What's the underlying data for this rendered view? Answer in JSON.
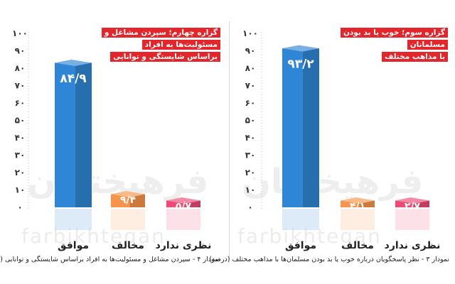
{
  "watermark": {
    "brand_fa": "فرهیختگان",
    "brand_en": "farbikhtegan"
  },
  "chart_data": [
    {
      "type": "bar",
      "panel": "left",
      "title": "گزاره چهارم؛ سپردن مشاغل و مسئولیت‌ها به افراد براساس شایستگی و توانایی",
      "title_lines": [
        "گزاره چهارم؛ سپردن مشاغل و مسئولیت‌ها به افراد",
        "براساس شایستگی و توانایی"
      ],
      "caption": "نمودار ۴ - سپردن مشاغل و مسئولیت‌ها به افراد براساس شایستگی و توانایی (درصد)",
      "categories": [
        "موافق",
        "مخالف",
        "نظری ندارد"
      ],
      "values": [
        84.9,
        9.4,
        5.7
      ],
      "data_labels": [
        "۸۴/۹",
        "۹/۴",
        "۵/۷"
      ],
      "colors": [
        "#2f86d6",
        "#f7934a",
        "#ee4a76"
      ],
      "ylim": [
        0,
        100
      ],
      "yticks": [
        "۱۰۰",
        "۹۰",
        "۸۰",
        "۷۰",
        "۶۰",
        "۵۰",
        "۴۰",
        "۳۰",
        "۲۰",
        "۱۰",
        "۰"
      ],
      "grid": false
    },
    {
      "type": "bar",
      "panel": "right",
      "title": "گزاره سوم؛ خوب یا بد بودن مسلمانان با مذاهب مختلف",
      "title_lines": [
        "گزاره سوم؛ خوب یا بد بودن مسلمانان",
        "با مذاهب مختلف"
      ],
      "caption": "نمودار ۳ - نظر پاسخگویان درباره خوب یا بد بودن مسلمان‌ها با مذاهب مختلف (درصد)",
      "categories": [
        "موافق",
        "مخالف",
        "نظری ندارد"
      ],
      "values": [
        93.2,
        4.1,
        2.7
      ],
      "data_labels": [
        "۹۳/۲",
        "۴/۱",
        "۲/۷"
      ],
      "colors": [
        "#2f86d6",
        "#f7934a",
        "#ee4a76"
      ],
      "ylim": [
        0,
        100
      ],
      "yticks": [
        "۱۰۰",
        "۹۰",
        "۸۰",
        "۷۰",
        "۶۰",
        "۵۰",
        "۴۰",
        "۳۰",
        "۲۰",
        "۱۰",
        "۰"
      ],
      "grid": false
    }
  ]
}
